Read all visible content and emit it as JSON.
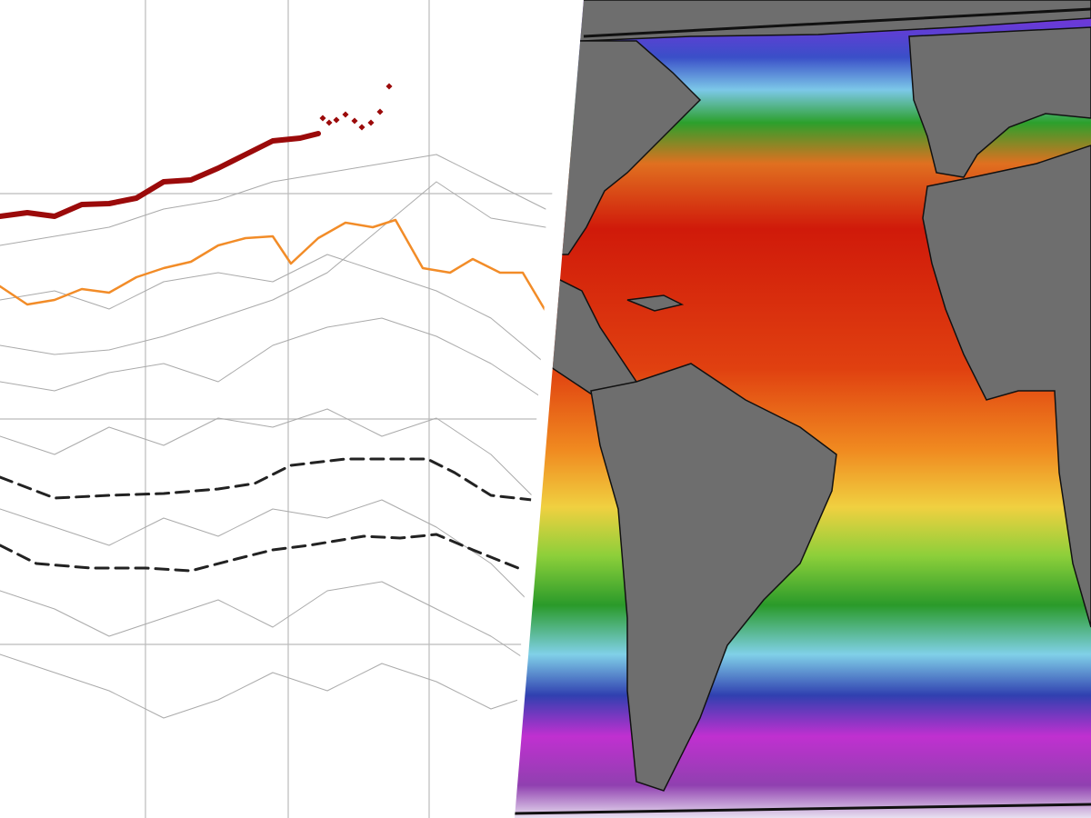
{
  "chart_data": {
    "type": "line",
    "xlim": [
      0,
      600
    ],
    "ylim": [
      0,
      9
    ],
    "grid": true,
    "series": [
      {
        "color": "#aaaaaa",
        "style": "solid",
        "width": 1,
        "x": [
          0,
          60,
          120,
          180,
          240,
          300,
          360,
          420,
          480,
          540,
          600
        ],
        "values": [
          5.2,
          5.1,
          5.15,
          5.3,
          5.5,
          5.7,
          6.0,
          6.5,
          7.0,
          6.6,
          6.5
        ]
      },
      {
        "color": "#aaaaaa",
        "style": "solid",
        "width": 1,
        "x": [
          0,
          60,
          120,
          180,
          240,
          300,
          360,
          420,
          480,
          540,
          600
        ],
        "values": [
          6.3,
          6.4,
          6.5,
          6.7,
          6.8,
          7.0,
          7.1,
          7.2,
          7.3,
          7.0,
          6.7
        ]
      },
      {
        "color": "#aaaaaa",
        "style": "solid",
        "width": 1,
        "x": [
          0,
          60,
          120,
          180,
          240,
          300,
          360,
          420,
          480,
          540,
          600
        ],
        "values": [
          4.8,
          4.7,
          4.9,
          5.0,
          4.8,
          5.2,
          5.4,
          5.5,
          5.3,
          5.0,
          4.6
        ]
      },
      {
        "color": "#aaaaaa",
        "style": "solid",
        "width": 1,
        "x": [
          0,
          60,
          120,
          180,
          240,
          300,
          360,
          420,
          480,
          540,
          600
        ],
        "values": [
          4.2,
          4.0,
          4.3,
          4.1,
          4.4,
          4.3,
          4.5,
          4.2,
          4.4,
          4.0,
          3.4
        ]
      },
      {
        "color": "#aaaaaa",
        "style": "solid",
        "width": 1,
        "x": [
          0,
          60,
          120,
          180,
          240,
          300,
          360,
          420,
          480,
          540,
          600
        ],
        "values": [
          3.4,
          3.2,
          3.0,
          3.3,
          3.1,
          3.4,
          3.3,
          3.5,
          3.2,
          2.8,
          2.2
        ]
      },
      {
        "color": "#aaaaaa",
        "style": "solid",
        "width": 1,
        "x": [
          0,
          60,
          120,
          180,
          240,
          300,
          360,
          420,
          480,
          540,
          600
        ],
        "values": [
          2.5,
          2.3,
          2.0,
          2.2,
          2.4,
          2.1,
          2.5,
          2.6,
          2.3,
          2.0,
          1.6
        ]
      },
      {
        "color": "#aaaaaa",
        "style": "solid",
        "width": 1,
        "x": [
          0,
          60,
          120,
          180,
          240,
          300,
          360,
          420,
          480,
          540,
          600
        ],
        "values": [
          1.8,
          1.6,
          1.4,
          1.1,
          1.3,
          1.6,
          1.4,
          1.7,
          1.5,
          1.2,
          1.4
        ]
      },
      {
        "color": "#aaaaaa",
        "style": "solid",
        "width": 1,
        "x": [
          0,
          60,
          120,
          180,
          240,
          300,
          360,
          420,
          480,
          540,
          600
        ],
        "values": [
          5.7,
          5.8,
          5.6,
          5.9,
          6.0,
          5.9,
          6.2,
          6.0,
          5.8,
          5.5,
          5.0
        ]
      },
      {
        "color": "#222222",
        "style": "dashed",
        "width": 3,
        "x": [
          0,
          60,
          120,
          180,
          240,
          280,
          320,
          380,
          420,
          470,
          500,
          540,
          585
        ],
        "values": [
          3.75,
          3.52,
          3.55,
          3.57,
          3.62,
          3.68,
          3.88,
          3.95,
          3.95,
          3.95,
          3.8,
          3.55,
          3.5
        ]
      },
      {
        "color": "#222222",
        "style": "dashed",
        "width": 3,
        "x": [
          0,
          40,
          100,
          160,
          210,
          260,
          300,
          340,
          400,
          440,
          480,
          520,
          570
        ],
        "values": [
          3.0,
          2.8,
          2.75,
          2.75,
          2.72,
          2.85,
          2.95,
          3.0,
          3.1,
          3.08,
          3.12,
          2.95,
          2.75
        ]
      },
      {
        "color": "#f28c28",
        "style": "solid",
        "width": 2.5,
        "x": [
          0,
          30,
          60,
          90,
          120,
          150,
          180,
          210,
          240,
          270,
          300,
          320,
          350,
          380,
          410,
          435,
          465,
          495,
          520,
          550,
          575,
          600
        ],
        "values": [
          5.85,
          5.65,
          5.7,
          5.82,
          5.78,
          5.95,
          6.05,
          6.12,
          6.3,
          6.38,
          6.4,
          6.1,
          6.38,
          6.55,
          6.5,
          6.58,
          6.05,
          6.0,
          6.15,
          6.0,
          6.0,
          5.58
        ]
      },
      {
        "color": "#9b0a0a",
        "style": "solid",
        "width": 6,
        "x": [
          0,
          30,
          60,
          90,
          120,
          150,
          180,
          210,
          240,
          270,
          300,
          330,
          350
        ],
        "values": [
          6.62,
          6.66,
          6.62,
          6.75,
          6.76,
          6.82,
          7.0,
          7.02,
          7.15,
          7.3,
          7.45,
          7.48,
          7.53
        ]
      },
      {
        "color": "#9b0a0a",
        "style": "dots",
        "width": 5,
        "x": [
          355,
          362,
          370,
          380,
          390,
          398,
          408,
          418,
          428
        ],
        "values": [
          7.7,
          7.65,
          7.68,
          7.74,
          7.67,
          7.6,
          7.65,
          7.77,
          8.05
        ]
      }
    ]
  }
}
